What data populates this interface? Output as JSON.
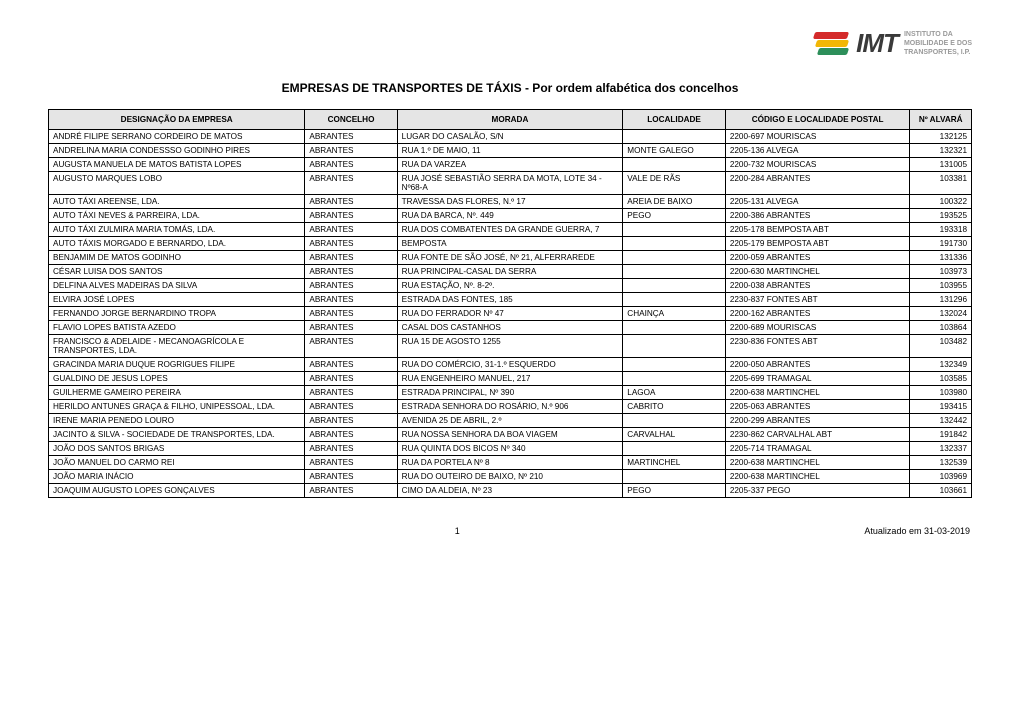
{
  "logo": {
    "acronym": "IMT",
    "subtitle_line1": "INSTITUTO DA",
    "subtitle_line2": "MOBILIDADE E DOS",
    "subtitle_line3": "TRANSPORTES, I.P."
  },
  "title": "EMPRESAS DE TRANSPORTES DE TÁXIS - Por ordem alfabética dos concelhos",
  "columns": {
    "designacao": "DESIGNAÇÃO DA EMPRESA",
    "concelho": "CONCELHO",
    "morada": "MORADA",
    "localidade": "LOCALIDADE",
    "codigo": "CÓDIGO E LOCALIDADE POSTAL",
    "alvara": "Nº ALVARÁ"
  },
  "rows": [
    {
      "d": "ANDRÉ FILIPE SERRANO CORDEIRO DE MATOS",
      "c": "ABRANTES",
      "m": "LUGAR DO CASALÃO, S/N",
      "l": "",
      "cp": "2200-697 MOURISCAS",
      "a": "132125"
    },
    {
      "d": "ANDRELINA MARIA CONDESSSO GODINHO PIRES",
      "c": "ABRANTES",
      "m": "RUA 1.º DE MAIO, 11",
      "l": "MONTE GALEGO",
      "cp": "2205-136 ALVEGA",
      "a": "132321"
    },
    {
      "d": "AUGUSTA MANUELA DE MATOS BATISTA LOPES",
      "c": "ABRANTES",
      "m": "RUA DA VARZEA",
      "l": "",
      "cp": "2200-732 MOURISCAS",
      "a": "131005"
    },
    {
      "d": "AUGUSTO MARQUES LOBO",
      "c": "ABRANTES",
      "m": "RUA JOSÉ SEBASTIÃO SERRA DA MOTA, LOTE 34 - Nº68-A",
      "l": "VALE DE RÃS",
      "cp": "2200-284 ABRANTES",
      "a": "103381"
    },
    {
      "d": "AUTO TÁXI AREENSE, LDA.",
      "c": "ABRANTES",
      "m": "TRAVESSA DAS FLORES, N.º 17",
      "l": "AREIA DE BAIXO",
      "cp": "2205-131 ALVEGA",
      "a": "100322"
    },
    {
      "d": "AUTO TÁXI NEVES & PARREIRA, LDA.",
      "c": "ABRANTES",
      "m": "RUA DA BARCA, Nº. 449",
      "l": "PEGO",
      "cp": "2200-386 ABRANTES",
      "a": "193525"
    },
    {
      "d": "AUTO TÁXI ZULMIRA MARIA TOMÁS, LDA.",
      "c": "ABRANTES",
      "m": "RUA DOS COMBATENTES DA GRANDE GUERRA, 7",
      "l": "",
      "cp": "2205-178 BEMPOSTA ABT",
      "a": "193318"
    },
    {
      "d": "AUTO TÁXIS MORGADO E BERNARDO, LDA.",
      "c": "ABRANTES",
      "m": "BEMPOSTA",
      "l": "",
      "cp": "2205-179 BEMPOSTA ABT",
      "a": "191730"
    },
    {
      "d": "BENJAMIM DE MATOS GODINHO",
      "c": "ABRANTES",
      "m": "RUA FONTE DE SÃO JOSÉ, Nº 21, ALFERRAREDE",
      "l": "",
      "cp": "2200-059 ABRANTES",
      "a": "131336"
    },
    {
      "d": "CÉSAR LUISA DOS SANTOS",
      "c": "ABRANTES",
      "m": "RUA PRINCIPAL-CASAL DA SERRA",
      "l": "",
      "cp": "2200-630 MARTINCHEL",
      "a": "103973"
    },
    {
      "d": "DELFINA ALVES MADEIRAS DA SILVA",
      "c": "ABRANTES",
      "m": "RUA ESTAÇÃO, Nº. 8-2º.",
      "l": "",
      "cp": "2200-038 ABRANTES",
      "a": "103955"
    },
    {
      "d": "ELVIRA JOSÉ LOPES",
      "c": "ABRANTES",
      "m": "ESTRADA DAS FONTES, 185",
      "l": "",
      "cp": "2230-837 FONTES ABT",
      "a": "131296"
    },
    {
      "d": "FERNANDO JORGE BERNARDINO TROPA",
      "c": "ABRANTES",
      "m": "RUA DO FERRADOR Nº 47",
      "l": "CHAINÇA",
      "cp": "2200-162 ABRANTES",
      "a": "132024"
    },
    {
      "d": "FLAVIO LOPES BATISTA AZEDO",
      "c": "ABRANTES",
      "m": "CASAL DOS CASTANHOS",
      "l": "",
      "cp": "2200-689 MOURISCAS",
      "a": "103864"
    },
    {
      "d": "FRANCISCO & ADELAIDE - MECANOAGRÍCOLA E TRANSPORTES, LDA.",
      "c": "ABRANTES",
      "m": "RUA 15 DE AGOSTO 1255",
      "l": "",
      "cp": "2230-836 FONTES ABT",
      "a": "103482"
    },
    {
      "d": "GRACINDA MARIA DUQUE ROGRIGUES FILIPE",
      "c": "ABRANTES",
      "m": "RUA DO COMÉRCIO, 31-1.º ESQUERDO",
      "l": "",
      "cp": "2200-050 ABRANTES",
      "a": "132349"
    },
    {
      "d": "GUALDINO DE JESUS LOPES",
      "c": "ABRANTES",
      "m": "RUA ENGENHEIRO MANUEL, 217",
      "l": "",
      "cp": "2205-699 TRAMAGAL",
      "a": "103585"
    },
    {
      "d": "GUILHERME GAMEIRO PEREIRA",
      "c": "ABRANTES",
      "m": "ESTRADA PRINCIPAL, Nº 390",
      "l": "LAGOA",
      "cp": "2200-638 MARTINCHEL",
      "a": "103980"
    },
    {
      "d": "HERILDO ANTUNES GRAÇA & FILHO, UNIPESSOAL, LDA.",
      "c": "ABRANTES",
      "m": "ESTRADA SENHORA DO ROSÁRIO, N.º 906",
      "l": "CABRITO",
      "cp": "2205-063 ABRANTES",
      "a": "193415"
    },
    {
      "d": "IRENE MARIA PENEDO LOURO",
      "c": "ABRANTES",
      "m": "AVENIDA 25 DE ABRIL, 2.º",
      "l": "",
      "cp": "2200-299 ABRANTES",
      "a": "132442"
    },
    {
      "d": "JACINTO & SILVA - SOCIEDADE DE TRANSPORTES, LDA.",
      "c": "ABRANTES",
      "m": "RUA NOSSA SENHORA DA BOA VIAGEM",
      "l": "CARVALHAL",
      "cp": "2230-862 CARVALHAL ABT",
      "a": "191842"
    },
    {
      "d": "JOÃO DOS SANTOS BRIGAS",
      "c": "ABRANTES",
      "m": "RUA QUINTA DOS BICOS Nº 340",
      "l": "",
      "cp": "2205-714 TRAMAGAL",
      "a": "132337"
    },
    {
      "d": "JOÃO MANUEL DO CARMO REI",
      "c": "ABRANTES",
      "m": "RUA DA PORTELA Nº 8",
      "l": "MARTINCHEL",
      "cp": "2200-638 MARTINCHEL",
      "a": "132539"
    },
    {
      "d": "JOÃO MARIA INÁCIO",
      "c": "ABRANTES",
      "m": "RUA DO OUTEIRO DE BAIXO, Nº 210",
      "l": "",
      "cp": "2200-638 MARTINCHEL",
      "a": "103969"
    },
    {
      "d": "JOAQUIM AUGUSTO LOPES GONÇALVES",
      "c": "ABRANTES",
      "m": "CIMO DA ALDEIA, Nº 23",
      "l": "PEGO",
      "cp": "2205-337 PEGO",
      "a": "103661"
    }
  ],
  "footer": {
    "page": "1",
    "updated": "Atualizado em 31-03-2019"
  }
}
